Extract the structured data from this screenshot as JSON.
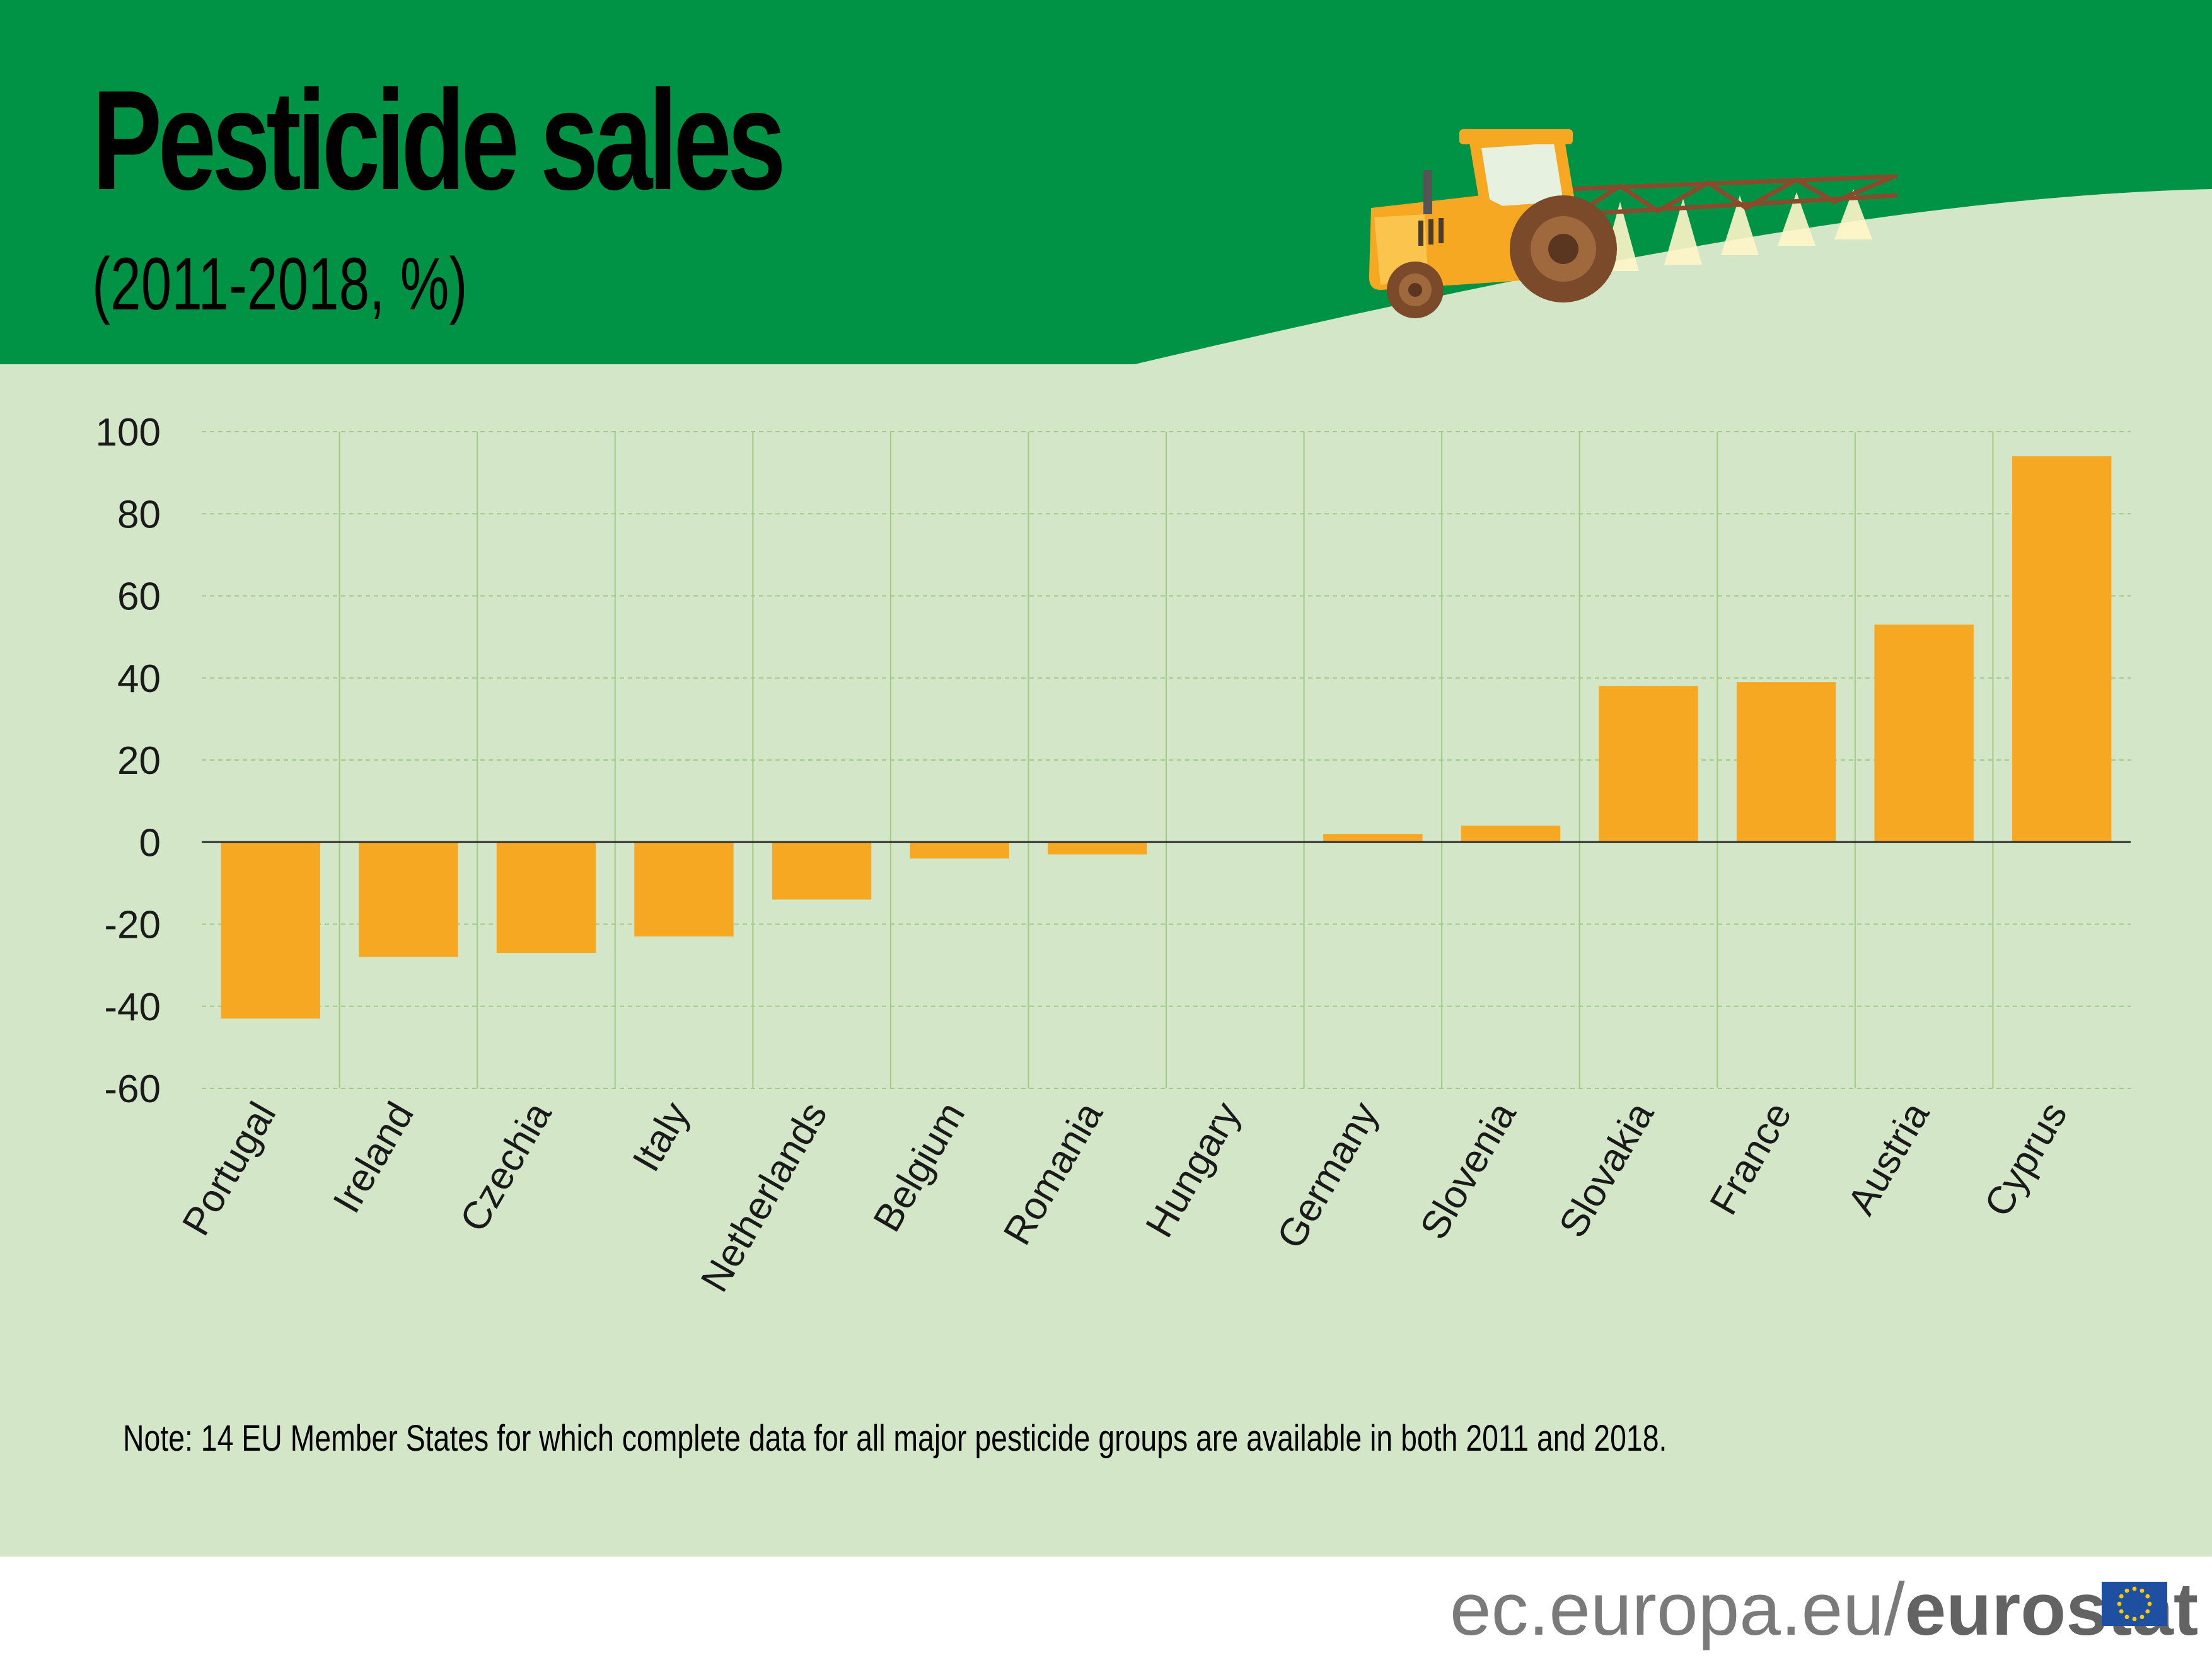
{
  "header": {
    "title": "Pesticide sales",
    "subtitle": "(2011-2018, %)"
  },
  "footer": {
    "note": "Note: 14 EU Member States for which complete data for all major pesticide groups are available in both 2011 and 2018.",
    "source_plain": "ec.europa.eu/",
    "source_bold": "eurostat"
  },
  "colors": {
    "header_green": "#009245",
    "field_green": "#d4e6c8",
    "bar_orange": "#f7a823",
    "grid_green": "#9fcb84"
  },
  "illustration": {
    "icon": "tractor-sprayer-icon"
  },
  "logo": {
    "icon": "eu-flag-icon"
  },
  "chart_data": {
    "type": "bar",
    "title": "Pesticide sales",
    "subtitle": "(2011-2018, %)",
    "xlabel": "",
    "ylabel": "",
    "ylim": [
      -60,
      100
    ],
    "yticks": [
      100,
      80,
      60,
      40,
      20,
      0,
      -20,
      -40,
      -60
    ],
    "grid": true,
    "categories": [
      "Portugal",
      "Ireland",
      "Czechia",
      "Italy",
      "Netherlands",
      "Belgium",
      "Romania",
      "Hungary",
      "Germany",
      "Slovenia",
      "Slovakia",
      "France",
      "Austria",
      "Cyprus"
    ],
    "values": [
      -43,
      -28,
      -27,
      -23,
      -14,
      -4,
      -3,
      0,
      2,
      4,
      38,
      39,
      53,
      94
    ]
  }
}
